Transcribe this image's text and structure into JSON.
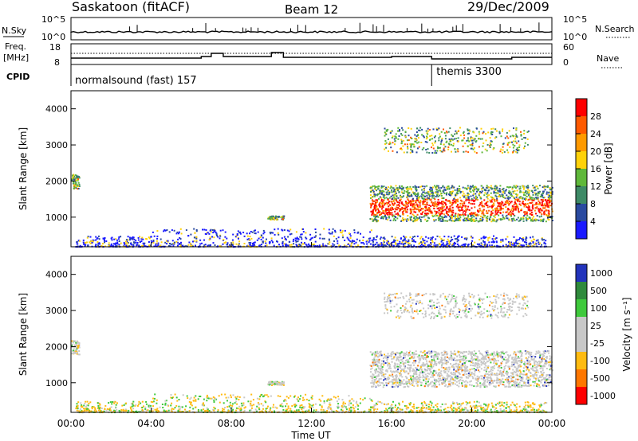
{
  "header": {
    "station": "Saskatoon (fitACF)",
    "beam": "Beam 12",
    "date": "29/Dec/2009"
  },
  "noise_panel": {
    "left_label": "N.Sky",
    "right_label": "N.Search",
    "left_ticks": [
      "10^5",
      "10^0"
    ],
    "right_ticks": [
      "10^5",
      "10^0"
    ]
  },
  "freq_panel": {
    "left_label_top": "Freq.",
    "left_label_bottom": "[MHz]",
    "left_ticks": [
      "18",
      "8"
    ],
    "right_label": "Nave",
    "right_ticks": [
      "60",
      "0"
    ]
  },
  "cpid_panel": {
    "label": "CPID",
    "segments": [
      {
        "name": "normalsound (fast) 157",
        "start_hour": 0
      },
      {
        "name": "themis 3300",
        "start_hour": 18
      }
    ]
  },
  "power_panel": {
    "ylabel": "Slant Range [km]",
    "yticks": [
      "1000",
      "2000",
      "3000",
      "4000"
    ],
    "colorbar_title": "Power [dB]",
    "colorbar_ticks": [
      "4",
      "8",
      "12",
      "16",
      "20",
      "24",
      "28"
    ],
    "colors": [
      "#1a1aff",
      "#2a4aa0",
      "#3e8a66",
      "#5fb83a",
      "#ffd20a",
      "#ff9a00",
      "#ff5a00",
      "#ff0000"
    ]
  },
  "velocity_panel": {
    "ylabel": "Slant Range [km]",
    "yticks": [
      "1000",
      "2000",
      "3000",
      "4000"
    ],
    "colorbar_title": "Velocity [m s⁻¹]",
    "colorbar_ticks": [
      "1000",
      "500",
      "100",
      "25",
      "-25",
      "-100",
      "-500",
      "-1000"
    ],
    "colors": [
      "#2233bb",
      "#2f8a3c",
      "#3fc93c",
      "#c8c8c8",
      "#c8c8c8",
      "#ffbb11",
      "#ff7700",
      "#ff0000"
    ]
  },
  "x_axis": {
    "title": "Time UT",
    "ticks": [
      "00:00",
      "04:00",
      "08:00",
      "12:00",
      "16:00",
      "20:00",
      "00:00"
    ]
  },
  "chart_data": {
    "type": "heatmap",
    "title": "Saskatoon (fitACF) Beam 12 29/Dec/2009",
    "xlabel": "Time UT",
    "ylabel": "Slant Range [km]",
    "xlim_hours": [
      0,
      24
    ],
    "ylim_km": [
      180,
      4500
    ],
    "power_db_range": [
      0,
      30
    ],
    "velocity_range": [
      -1000,
      1000
    ],
    "echo_regions": [
      {
        "name": "ground scatter",
        "t_start": 0.2,
        "t_end": 23.7,
        "range_start": 200,
        "range_end": 700
      },
      {
        "name": "main band",
        "t_start": 14.9,
        "t_end": 24.0,
        "range_start": 900,
        "range_end": 1900
      },
      {
        "name": "upper patch",
        "t_start": 15.6,
        "t_end": 22.8,
        "range_start": 2800,
        "range_end": 3500
      },
      {
        "name": "early patch",
        "t_start": 0.0,
        "t_end": 0.4,
        "range_start": 1800,
        "range_end": 2200
      },
      {
        "name": "small patch",
        "t_start": 9.8,
        "t_end": 10.6,
        "range_start": 950,
        "range_end": 1050
      }
    ]
  }
}
